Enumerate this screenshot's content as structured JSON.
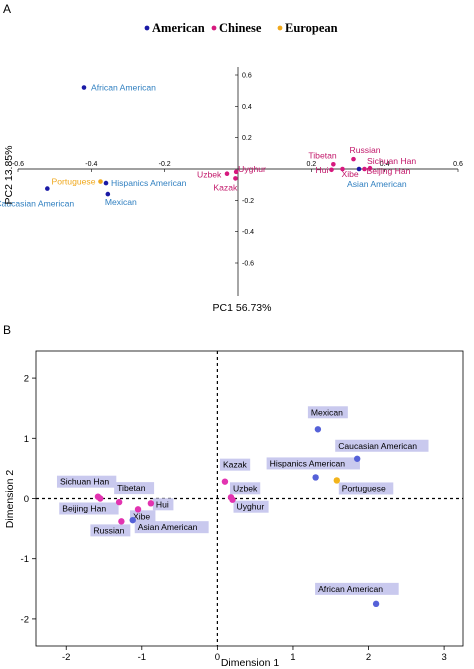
{
  "colors": {
    "American": "#1a1aa6",
    "Chinese": "#d6197e",
    "European": "#f0a81c",
    "american_label_text": "#2f7fc0",
    "chinese_label_text": "#c2186a",
    "european_label_text": "#f0a81c",
    "panel_b_american": "#5561d8",
    "panel_b_chinese": "#e233b0",
    "panel_b_european": "#f2b41c",
    "panel_b_label_bg": "#c9c9ee"
  },
  "chart_data": [
    {
      "panel": "A",
      "type": "scatter",
      "legend": [
        "American",
        "Chinese",
        "European"
      ],
      "legend_placement": "top",
      "xlabel": "PC1 56.73%",
      "ylabel": "PC2 13.85%",
      "xlim": [
        -0.6,
        0.6
      ],
      "ylim": [
        -0.7,
        0.72
      ],
      "xticks": [
        "-0.6",
        "-0.4",
        "-0.2",
        "0.2",
        "0.4",
        "0.6"
      ],
      "yticks": [
        "0.6",
        "0.4",
        "0.2",
        "-0.2",
        "-0.4",
        "-0.6"
      ],
      "grid": false,
      "points": [
        {
          "label": "African American",
          "group": "American",
          "x": -0.42,
          "y": 0.52
        },
        {
          "label": "Hispanics American",
          "group": "American",
          "x": -0.36,
          "y": -0.09
        },
        {
          "label": "Mexican",
          "group": "American",
          "x": -0.355,
          "y": -0.16
        },
        {
          "label": "Caucasian American",
          "group": "American",
          "x": -0.52,
          "y": -0.125
        },
        {
          "label": "Asian American",
          "group": "American",
          "x": 0.33,
          "y": 0.0
        },
        {
          "label": "Portuguese",
          "group": "European",
          "x": -0.375,
          "y": -0.08
        },
        {
          "label": "Russian",
          "group": "Chinese",
          "x": 0.315,
          "y": 0.063
        },
        {
          "label": "Tibetan",
          "group": "Chinese",
          "x": 0.26,
          "y": 0.03
        },
        {
          "label": "Hui",
          "group": "Chinese",
          "x": 0.255,
          "y": -0.005
        },
        {
          "label": "Xibe",
          "group": "Chinese",
          "x": 0.285,
          "y": 0.0
        },
        {
          "label": "Sichuan Han",
          "group": "Chinese",
          "x": 0.36,
          "y": 0.005
        },
        {
          "label": "Beijing Han",
          "group": "Chinese",
          "x": 0.345,
          "y": 0.0
        },
        {
          "label": "Uzbek",
          "group": "Chinese",
          "x": -0.03,
          "y": -0.03
        },
        {
          "label": "Uyghur",
          "group": "Chinese",
          "x": -0.005,
          "y": -0.018
        },
        {
          "label": "Kazak",
          "group": "Chinese",
          "x": -0.007,
          "y": -0.06
        }
      ]
    },
    {
      "panel": "B",
      "type": "scatter",
      "xlabel": "Dimension 1",
      "ylabel": "Dimension 2",
      "xlim": [
        -2.4,
        3.25
      ],
      "ylim": [
        -2.45,
        2.45
      ],
      "xticks": [
        "-2",
        "-1",
        "0",
        "1",
        "2",
        "3"
      ],
      "yticks": [
        "2",
        "1",
        "0",
        "-1",
        "-2"
      ],
      "grid": false,
      "reference_lines": {
        "x": 0,
        "y": 0
      },
      "points": [
        {
          "label": "Mexican",
          "group": "American",
          "x": 1.33,
          "y": 1.15
        },
        {
          "label": "Caucasian American",
          "group": "American",
          "x": 1.85,
          "y": 0.66
        },
        {
          "label": "Hispanics American",
          "group": "American",
          "x": 1.3,
          "y": 0.35
        },
        {
          "label": "Portuguese",
          "group": "European",
          "x": 1.58,
          "y": 0.3
        },
        {
          "label": "African American",
          "group": "American",
          "x": 2.1,
          "y": -1.75
        },
        {
          "label": "Kazak",
          "group": "Chinese",
          "x": 0.1,
          "y": 0.28
        },
        {
          "label": "Uzbek",
          "group": "Chinese",
          "x": 0.18,
          "y": 0.02
        },
        {
          "label": "Uyghur",
          "group": "Chinese",
          "x": 0.2,
          "y": -0.02
        },
        {
          "label": "Sichuan Han",
          "group": "Chinese",
          "x": -1.58,
          "y": 0.03
        },
        {
          "label": "Beijing Han",
          "group": "Chinese",
          "x": -1.55,
          "y": 0.0
        },
        {
          "label": "Tibetan",
          "group": "Chinese",
          "x": -1.3,
          "y": -0.06
        },
        {
          "label": "Hui",
          "group": "Chinese",
          "x": -0.88,
          "y": -0.08
        },
        {
          "label": "Xibe",
          "group": "Chinese",
          "x": -1.05,
          "y": -0.18
        },
        {
          "label": "Russian",
          "group": "Chinese",
          "x": -1.27,
          "y": -0.38
        },
        {
          "label": "Asian American",
          "group": "American",
          "x": -1.12,
          "y": -0.36
        }
      ]
    }
  ],
  "panel_letters": {
    "a": "A",
    "b": "B"
  }
}
